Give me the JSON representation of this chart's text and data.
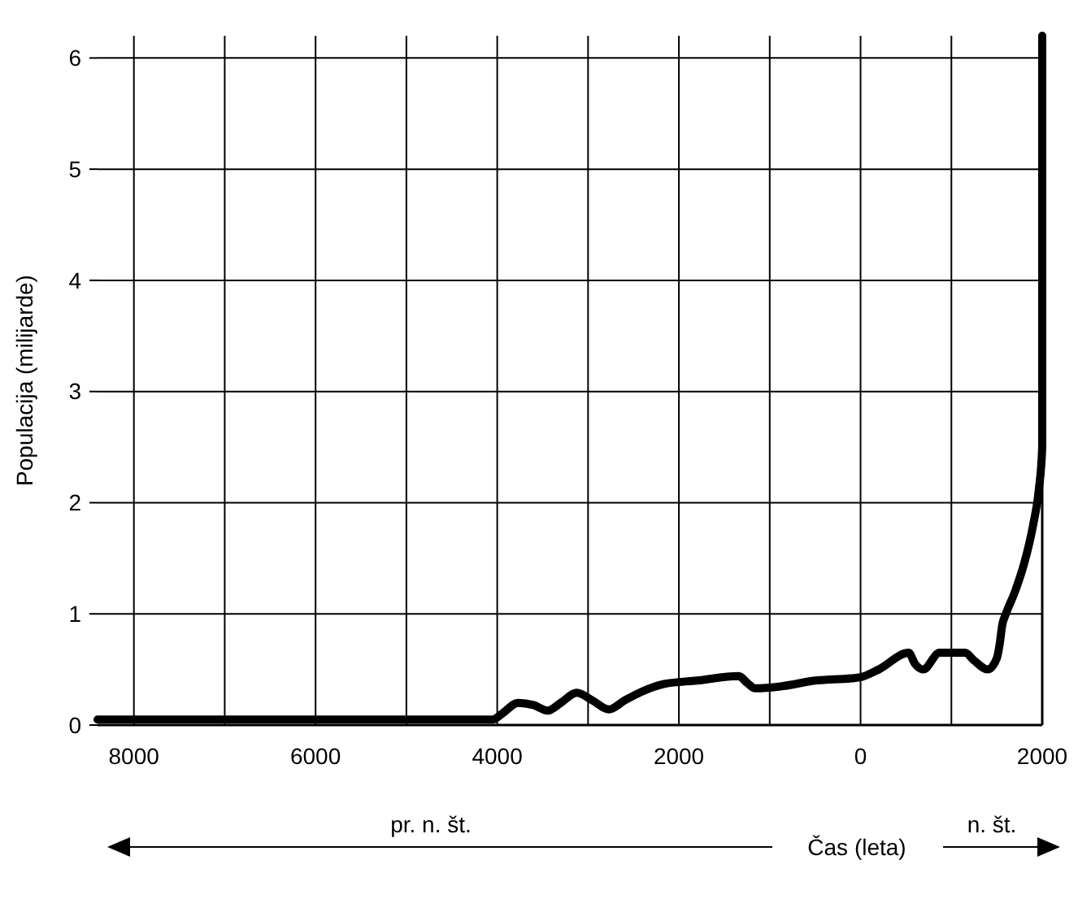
{
  "chart_data": {
    "type": "line",
    "ylabel": "Populacija (milijarde)",
    "xlabel": "Čas (leta)",
    "annotations": [
      "pr. n. št.",
      "n. št."
    ],
    "x": [
      -8400,
      -6000,
      -4050,
      -3950,
      -3770,
      -3600,
      -3445,
      -3300,
      -3125,
      -2950,
      -2770,
      -2600,
      -2410,
      -2160,
      -1800,
      -1340,
      -1250,
      -1160,
      -860,
      -500,
      -100,
      0,
      200,
      530,
      600,
      690,
      870,
      1150,
      1250,
      1400,
      1500,
      1530,
      1560,
      1600,
      1700,
      1800,
      1900,
      1960,
      2000,
      2000
    ],
    "series": [
      {
        "color": "#000000",
        "values": [
          0.05,
          0.05,
          0.05,
          0.1,
          0.2,
          0.18,
          0.13,
          0.2,
          0.29,
          0.22,
          0.14,
          0.22,
          0.3,
          0.37,
          0.4,
          0.44,
          0.38,
          0.33,
          0.35,
          0.4,
          0.42,
          0.43,
          0.5,
          0.65,
          0.55,
          0.5,
          0.65,
          0.65,
          0.58,
          0.5,
          0.6,
          0.72,
          0.9,
          1.0,
          1.2,
          1.45,
          1.8,
          2.1,
          2.5,
          6.2
        ]
      }
    ],
    "xlim": [
      -8400,
      2000
    ],
    "ylim": [
      0,
      6.2
    ],
    "xticks": [
      {
        "value": -8000,
        "label": "8000"
      },
      {
        "value": -7000,
        "label": null
      },
      {
        "value": -6000,
        "label": "6000"
      },
      {
        "value": -5000,
        "label": null
      },
      {
        "value": -4000,
        "label": "4000"
      },
      {
        "value": -3000,
        "label": null
      },
      {
        "value": -2000,
        "label": "2000"
      },
      {
        "value": -1000,
        "label": null
      },
      0,
      {
        "value": 1000,
        "label": null
      },
      2000
    ],
    "yticks": [
      0,
      1,
      2,
      3,
      4,
      5,
      6
    ],
    "grid": true,
    "line_style": "solid",
    "marker": "none"
  }
}
